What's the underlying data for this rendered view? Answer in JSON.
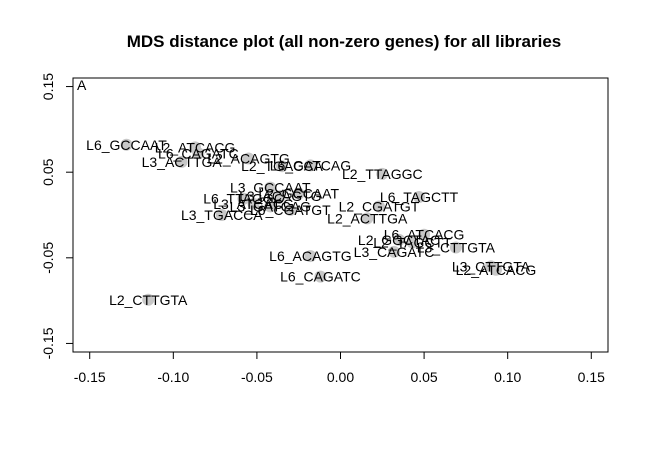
{
  "chart_data": {
    "type": "scatter",
    "title": "MDS distance plot (all non-zero genes) for all libraries",
    "xlabel": "",
    "ylabel": "",
    "xlim": [
      -0.16,
      0.16
    ],
    "ylim": [
      -0.16,
      0.16
    ],
    "x_ticks": [
      -0.15,
      -0.1,
      -0.05,
      0.0,
      0.05,
      0.1,
      0.15
    ],
    "x_tick_labels": [
      "-0.15",
      "-0.10",
      "-0.05",
      "0.00",
      "0.05",
      "0.10",
      "0.15"
    ],
    "y_ticks": [
      -0.15,
      -0.05,
      0.05,
      0.15
    ],
    "y_tick_labels": [
      "-0.15",
      "-0.05",
      "0.05",
      "0.15"
    ],
    "corner_label": "A",
    "marker_color": "#c8c8c8",
    "points": [
      {
        "label": "L6_GCCAAT",
        "x": -0.128,
        "y": 0.082
      },
      {
        "label": "L2_ATCACG",
        "x": -0.087,
        "y": 0.079
      },
      {
        "label": "L3_ACTTGA",
        "x": -0.095,
        "y": 0.062
      },
      {
        "label": "L6_CAGATC",
        "x": -0.085,
        "y": 0.072
      },
      {
        "label": "L2_ACAGTG",
        "x": -0.055,
        "y": 0.066
      },
      {
        "label": "L2_TGACCA",
        "x": -0.035,
        "y": 0.057
      },
      {
        "label": "L6_GATCAG",
        "x": -0.018,
        "y": 0.058
      },
      {
        "label": "L2_TTAGGC",
        "x": 0.025,
        "y": 0.048
      },
      {
        "label": "L3_GCCAAT",
        "x": -0.042,
        "y": 0.032
      },
      {
        "label": "L3_ACAGTG",
        "x": -0.036,
        "y": 0.022
      },
      {
        "label": "L2_GCCAAT",
        "x": -0.025,
        "y": 0.025
      },
      {
        "label": "L6_TAGCTT",
        "x": 0.047,
        "y": 0.021
      },
      {
        "label": "L6_TTAGGC",
        "x": -0.058,
        "y": 0.019
      },
      {
        "label": "L3_ATCACG",
        "x": -0.052,
        "y": 0.013
      },
      {
        "label": "L2_CGATGT",
        "x": 0.023,
        "y": 0.01
      },
      {
        "label": "L3_GATCAG",
        "x": -0.042,
        "y": 0.01
      },
      {
        "label": "L6_CGATGT",
        "x": -0.03,
        "y": 0.006
      },
      {
        "label": "L3_TGACCA",
        "x": -0.071,
        "y": 0.0
      },
      {
        "label": "L2_ACTTGA",
        "x": 0.016,
        "y": -0.004
      },
      {
        "label": "L6_ATCACG",
        "x": 0.05,
        "y": -0.023
      },
      {
        "label": "L2_GGCTAC",
        "x": 0.035,
        "y": -0.029
      },
      {
        "label": "L2_TAGCTT",
        "x": 0.043,
        "y": -0.032
      },
      {
        "label": "L3_CTTGTA",
        "x": 0.069,
        "y": -0.038
      },
      {
        "label": "L3_CAGATC",
        "x": 0.032,
        "y": -0.043
      },
      {
        "label": "L6_ACAGTG",
        "x": -0.018,
        "y": -0.048
      },
      {
        "label": "L3_CTTGTA2",
        "x": 0.09,
        "y": -0.06
      },
      {
        "label": "L2_ATCACG2",
        "x": 0.093,
        "y": -0.064
      },
      {
        "label": "L6_CAGATC2",
        "x": -0.012,
        "y": -0.072
      },
      {
        "label": "L2_CTTGTA",
        "x": -0.115,
        "y": -0.099
      }
    ],
    "display_labels": [
      "L6_GCCAAT",
      "L2_ATCACG",
      "L3_ACTTGA",
      "L6_CAGATC",
      "L2_ACAGTG",
      "L2_TGACCA",
      "L6_GATCAG",
      "L2_TTAGGC",
      "L3_GCCAAT",
      "L3_ACAGTG",
      "L2_GCCAAT",
      "L6_TAGCTT",
      "L6_TTAGGC",
      "L3_ATCACG",
      "L2_CGATGT",
      "L3_GATCAG",
      "L6_CGATGT",
      "L3_TGACCA",
      "L2_ACTTGA",
      "L6_ATCACG",
      "L2_GGCTAC",
      "L2_TAGCTT",
      "L3_CTTGTA",
      "L3_CAGATC",
      "L6_ACAGTG",
      "L3_CTTGTA",
      "L2_ATCACG",
      "L6_CAGATC",
      "L2_CTTGTA"
    ]
  }
}
